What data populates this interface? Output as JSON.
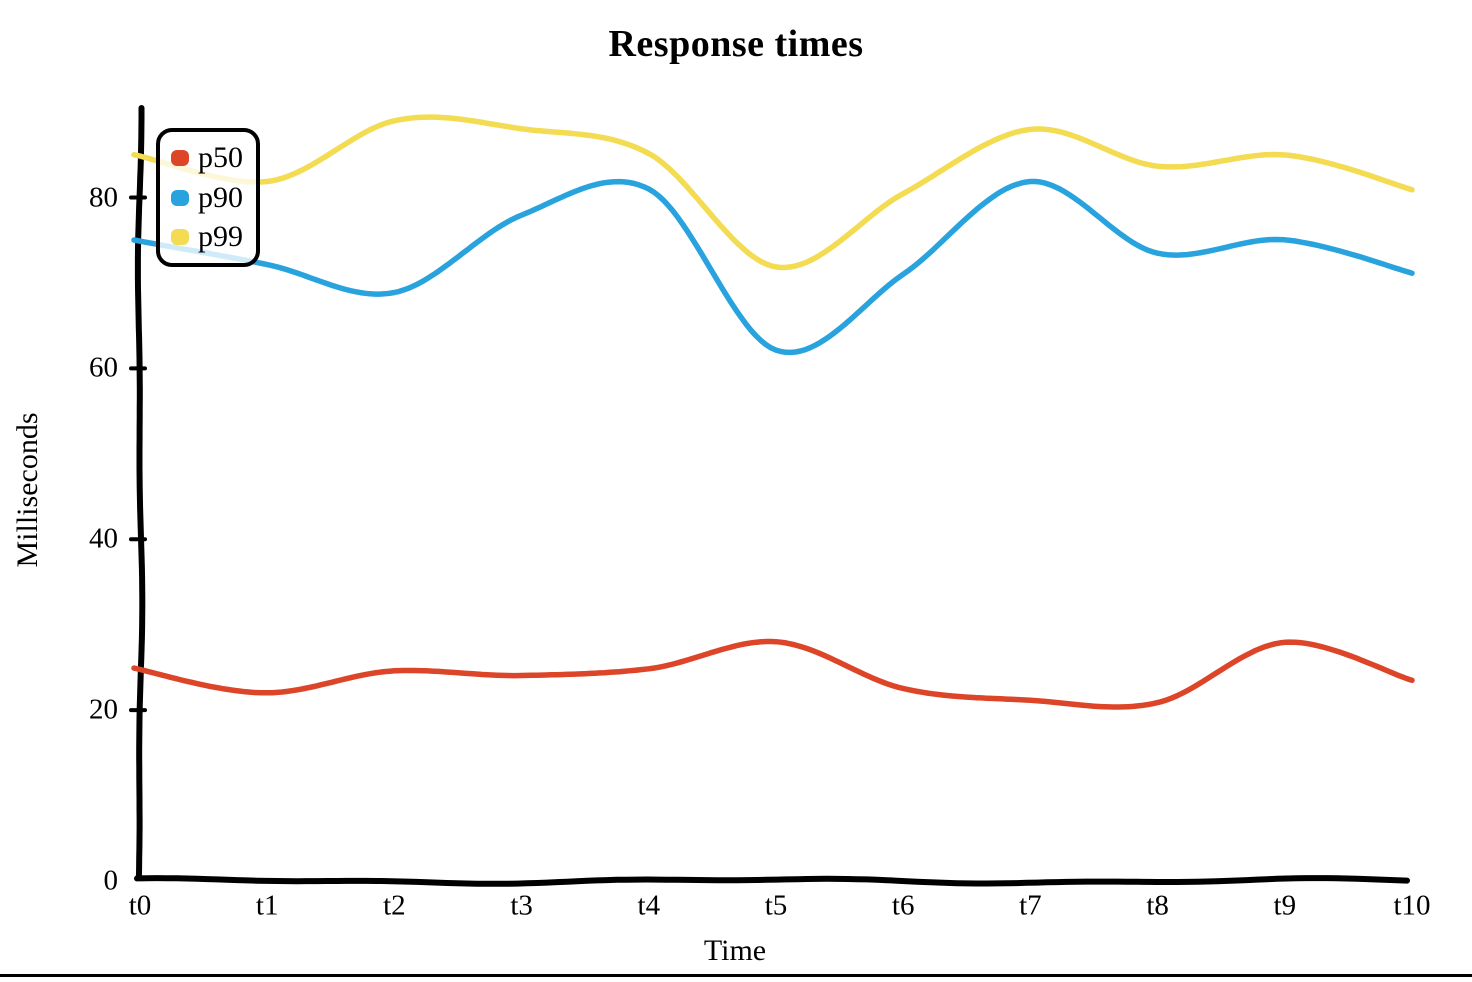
{
  "page": {
    "background": "#ffffff",
    "bottom_rule_color": "#000000"
  },
  "chart_data": {
    "type": "line",
    "style": "xkcd-sketch",
    "title": "Response times",
    "xlabel": "Time",
    "ylabel": "Milliseconds",
    "categories": [
      "t0",
      "t1",
      "t2",
      "t3",
      "t4",
      "t5",
      "t6",
      "t7",
      "t8",
      "t9",
      "t10"
    ],
    "yticks": [
      0,
      20,
      40,
      60,
      80
    ],
    "ylim": [
      0,
      90
    ],
    "grid": false,
    "legend_position": "top-left",
    "axis_color": "#000000",
    "series": [
      {
        "name": "p50",
        "color": "#dd4528",
        "values": [
          25,
          22,
          24.5,
          24,
          25,
          28,
          22.5,
          21,
          21,
          28,
          23.5
        ]
      },
      {
        "name": "p90",
        "color": "#28a3dd",
        "values": [
          75,
          72,
          69,
          78,
          81,
          62,
          71,
          82,
          73.5,
          75,
          71
        ]
      },
      {
        "name": "p99",
        "color": "#f3db52",
        "values": [
          85,
          82,
          89,
          88,
          85,
          72,
          80.5,
          88,
          83.5,
          85,
          81
        ]
      }
    ]
  }
}
